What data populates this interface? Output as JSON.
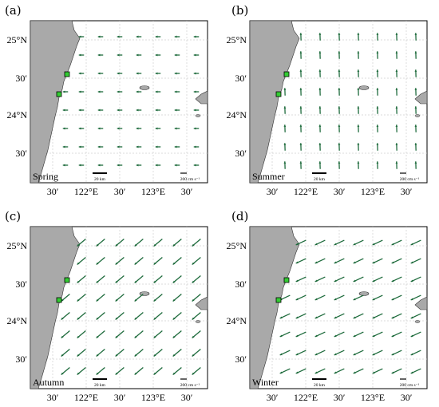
{
  "colors": {
    "land": "#a9a9a9",
    "coast": "#333333",
    "arrow": "#1e6b3c",
    "station": "#33cc33",
    "grid": "#d0d0d0"
  },
  "panels": [
    {
      "id": "a",
      "letter": "(a)",
      "season": "Spring",
      "lat_labels": [
        "25°N",
        "30′",
        "24°N",
        "30′"
      ],
      "lon_labels": [
        "30′",
        "122°E",
        "30′",
        "123°E",
        "30′"
      ],
      "scale_bar": "20 km",
      "vector_scale": "200 cm s⁻¹",
      "vector_direction": "weak westward",
      "vector_strength": 0.25
    },
    {
      "id": "b",
      "letter": "(b)",
      "season": "Summer",
      "lat_labels": [
        "25°N",
        "30′",
        "24°N",
        "30′"
      ],
      "lon_labels": [
        "30′",
        "122°E",
        "30′",
        "123°E",
        "30′"
      ],
      "scale_bar": "20 km",
      "vector_scale": "200 cm s⁻¹",
      "vector_direction": "northward",
      "vector_strength": 0.55
    },
    {
      "id": "c",
      "letter": "(c)",
      "season": "Autumn",
      "lat_labels": [
        "25°N",
        "30′",
        "24°N",
        "30′"
      ],
      "lon_labels": [
        "30′",
        "122°E",
        "30′",
        "123°E",
        "30′"
      ],
      "scale_bar": "20 km",
      "vector_scale": "200 cm s⁻¹",
      "vector_direction": "southwestward",
      "vector_strength": 1.0
    },
    {
      "id": "d",
      "letter": "(d)",
      "season": "Winter",
      "lat_labels": [
        "25°N",
        "30′",
        "24°N",
        "30′"
      ],
      "lon_labels": [
        "30′",
        "122°E",
        "30′",
        "123°E",
        "30′"
      ],
      "scale_bar": "20 km",
      "vector_scale": "200 cm s⁻¹",
      "vector_direction": "west-southwestward",
      "vector_strength": 1.0
    }
  ]
}
